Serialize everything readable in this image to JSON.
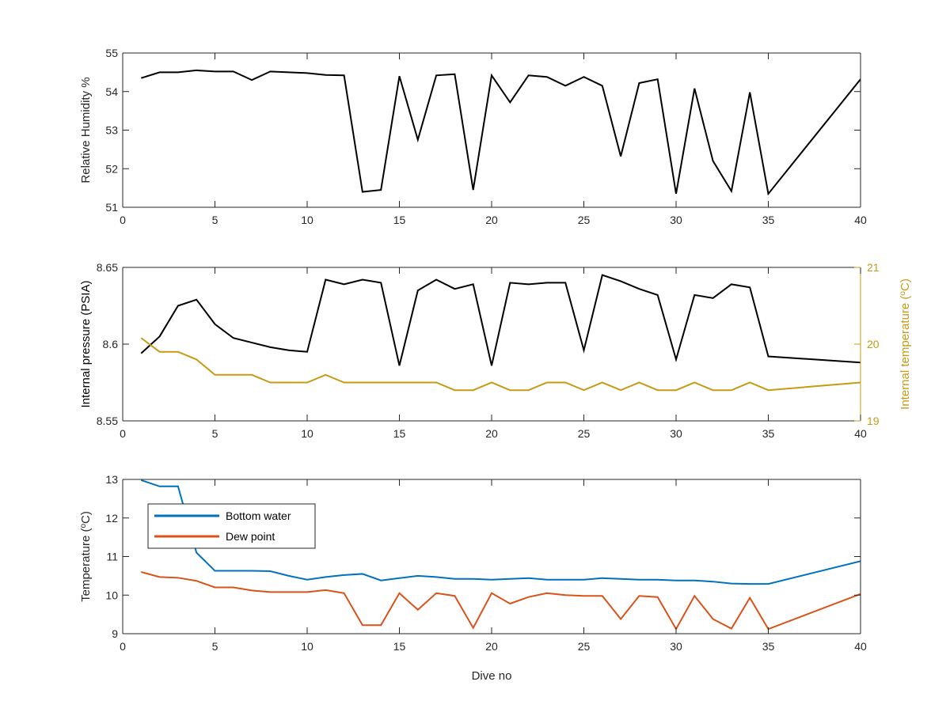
{
  "chart_data": [
    {
      "type": "line",
      "title": "",
      "xlabel": "",
      "ylabel": "Relative Humidity %",
      "xlim": [
        0,
        40
      ],
      "ylim": [
        51,
        55
      ],
      "xticks": [
        0,
        5,
        10,
        15,
        20,
        25,
        30,
        35,
        40
      ],
      "yticks": [
        51,
        52,
        53,
        54,
        55
      ],
      "grid": false,
      "series": [
        {
          "color": "#000000",
          "x": [
            1,
            2,
            3,
            4,
            5,
            6,
            7,
            8,
            9,
            10,
            11,
            12,
            13,
            14,
            15,
            16,
            17,
            18,
            19,
            20,
            21,
            22,
            23,
            24,
            25,
            26,
            27,
            28,
            29,
            30,
            31,
            32,
            33,
            34,
            35,
            40
          ],
          "y": [
            54.35,
            54.5,
            54.5,
            54.55,
            54.52,
            54.52,
            54.3,
            54.52,
            54.5,
            54.48,
            54.43,
            54.42,
            51.4,
            51.45,
            54.4,
            52.75,
            54.42,
            54.45,
            51.45,
            54.42,
            53.72,
            54.42,
            54.38,
            54.15,
            54.38,
            54.15,
            52.32,
            54.22,
            54.32,
            51.35,
            54.08,
            52.2,
            51.42,
            53.98,
            51.35,
            54.32
          ]
        }
      ]
    },
    {
      "type": "line",
      "title": "",
      "xlabel": "",
      "ylabel": "Internal pressure (PSIA)",
      "y2label": "Internal temperature (°C)",
      "xlim": [
        0,
        40
      ],
      "ylim": [
        8.55,
        8.65
      ],
      "y2lim": [
        19,
        21
      ],
      "xticks": [
        0,
        5,
        10,
        15,
        20,
        25,
        30,
        35,
        40
      ],
      "yticks": [
        8.55,
        8.6,
        8.65
      ],
      "y2ticks": [
        19,
        20,
        21
      ],
      "grid": false,
      "series": [
        {
          "axis": "left",
          "color": "#000000",
          "x": [
            1,
            2,
            3,
            4,
            5,
            6,
            7,
            8,
            9,
            10,
            11,
            12,
            13,
            14,
            15,
            16,
            17,
            18,
            19,
            20,
            21,
            22,
            23,
            24,
            25,
            26,
            27,
            28,
            29,
            30,
            31,
            32,
            33,
            34,
            35,
            40
          ],
          "y": [
            8.594,
            8.605,
            8.625,
            8.629,
            8.613,
            8.604,
            8.601,
            8.598,
            8.596,
            8.595,
            8.642,
            8.639,
            8.642,
            8.64,
            8.586,
            8.635,
            8.642,
            8.636,
            8.639,
            8.586,
            8.64,
            8.639,
            8.64,
            8.64,
            8.596,
            8.645,
            8.641,
            8.636,
            8.632,
            8.59,
            8.632,
            8.63,
            8.639,
            8.637,
            8.592,
            8.588
          ]
        },
        {
          "axis": "right",
          "color": "#c59b15",
          "x": [
            1,
            2,
            3,
            4,
            5,
            6,
            7,
            8,
            9,
            10,
            11,
            12,
            13,
            14,
            15,
            16,
            17,
            18,
            19,
            20,
            21,
            22,
            23,
            24,
            25,
            26,
            27,
            28,
            29,
            30,
            31,
            32,
            33,
            34,
            35,
            40
          ],
          "y": [
            20.08,
            19.9,
            19.9,
            19.8,
            19.6,
            19.6,
            19.6,
            19.5,
            19.5,
            19.5,
            19.6,
            19.5,
            19.5,
            19.5,
            19.5,
            19.5,
            19.5,
            19.4,
            19.4,
            19.5,
            19.4,
            19.4,
            19.5,
            19.5,
            19.4,
            19.5,
            19.4,
            19.5,
            19.4,
            19.4,
            19.5,
            19.4,
            19.4,
            19.5,
            19.4,
            19.5
          ]
        }
      ]
    },
    {
      "type": "line",
      "title": "",
      "xlabel": "Dive no",
      "ylabel": "Temperature (°C)",
      "xlim": [
        0,
        40
      ],
      "ylim": [
        9,
        13
      ],
      "xticks": [
        0,
        5,
        10,
        15,
        20,
        25,
        30,
        35,
        40
      ],
      "yticks": [
        9,
        10,
        11,
        12,
        13
      ],
      "grid": false,
      "legend": "top-left",
      "series": [
        {
          "name": "Bottom water",
          "color": "#0072bd",
          "x": [
            1,
            2,
            3,
            4,
            5,
            6,
            7,
            8,
            9,
            10,
            11,
            12,
            13,
            14,
            15,
            16,
            17,
            18,
            19,
            20,
            21,
            22,
            23,
            24,
            25,
            26,
            27,
            28,
            29,
            30,
            31,
            32,
            33,
            34,
            35,
            40
          ],
          "y": [
            12.98,
            12.82,
            12.82,
            11.1,
            10.63,
            10.63,
            10.63,
            10.62,
            10.5,
            10.4,
            10.47,
            10.52,
            10.55,
            10.38,
            10.44,
            10.5,
            10.47,
            10.42,
            10.42,
            10.4,
            10.42,
            10.44,
            10.4,
            10.4,
            10.4,
            10.44,
            10.42,
            10.4,
            10.4,
            10.38,
            10.38,
            10.35,
            10.3,
            10.29,
            10.29,
            10.88
          ]
        },
        {
          "name": "Dew point",
          "color": "#d95319",
          "x": [
            1,
            2,
            3,
            4,
            5,
            6,
            7,
            8,
            9,
            10,
            11,
            12,
            13,
            14,
            15,
            16,
            17,
            18,
            19,
            20,
            21,
            22,
            23,
            24,
            25,
            26,
            27,
            28,
            29,
            30,
            31,
            32,
            33,
            34,
            35,
            40
          ],
          "y": [
            10.6,
            10.47,
            10.45,
            10.37,
            10.2,
            10.2,
            10.12,
            10.08,
            10.08,
            10.08,
            10.13,
            10.05,
            9.22,
            9.22,
            10.05,
            9.62,
            10.05,
            9.98,
            9.15,
            10.05,
            9.78,
            9.95,
            10.05,
            10.0,
            9.98,
            9.98,
            9.38,
            9.98,
            9.95,
            9.12,
            9.98,
            9.38,
            9.13,
            9.93,
            9.12,
            10.03
          ]
        }
      ]
    }
  ]
}
